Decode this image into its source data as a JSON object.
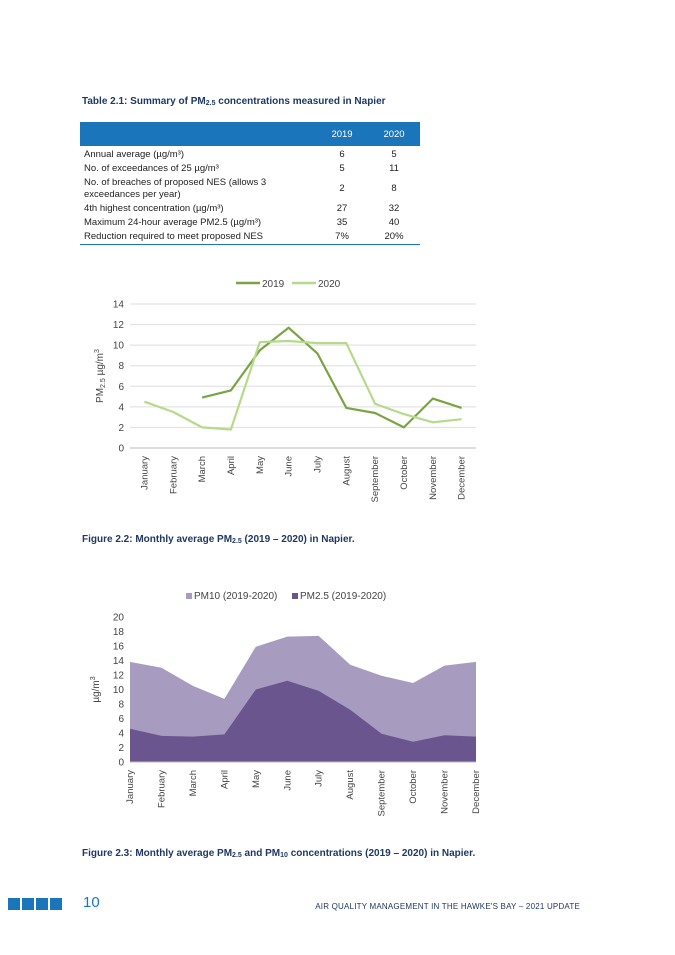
{
  "table": {
    "caption_pre": "Table 2.1: Summary of PM",
    "caption_sub": "2.5",
    "caption_post": " concentrations measured in Napier",
    "headers": [
      "",
      "2019",
      "2020"
    ],
    "rows": [
      {
        "label": "Annual average (µg/m³)",
        "v2019": "6",
        "v2020": "5"
      },
      {
        "label": "No. of exceedances of 25 µg/m³",
        "v2019": "5",
        "v2020": "11"
      },
      {
        "label": "No. of breaches of proposed NES (allows 3 exceedances per year)",
        "v2019": "2",
        "v2020": "8"
      },
      {
        "label": "4th highest concentration (µg/m³)",
        "v2019": "27",
        "v2020": "32"
      },
      {
        "label": "Maximum 24-hour average PM2.5 (µg/m³)",
        "v2019": "35",
        "v2020": "40"
      },
      {
        "label": "Reduction required to meet proposed NES",
        "v2019": "7%",
        "v2020": "20%"
      }
    ]
  },
  "figure1": {
    "caption_pre": "Figure 2.2: Monthly average PM",
    "caption_sub": "2.5",
    "caption_post": " (2019 – 2020) in Napier."
  },
  "figure2": {
    "caption_pre": "Figure 2.3: Monthly average PM",
    "caption_sub": "2.5",
    "caption_mid": " and PM",
    "caption_sub2": "10",
    "caption_post": " concentrations (2019 – 2020) in Napier."
  },
  "footer": {
    "page_number": "10",
    "title": "AIR QUALITY MANAGEMENT IN THE HAWKE'S BAY – 2021 UPDATE"
  },
  "chart_data": [
    {
      "type": "line",
      "title": "",
      "xlabel": "",
      "ylabel": "PM2.5 µg/m3",
      "ylim": [
        0,
        14
      ],
      "yticks": [
        "0",
        "2",
        "4",
        "6",
        "8",
        "10",
        "12",
        "14"
      ],
      "grid": true,
      "legend": "top",
      "categories": [
        "January",
        "February",
        "March",
        "April",
        "May",
        "June",
        "July",
        "August",
        "September",
        "October",
        "November",
        "December"
      ],
      "series": [
        {
          "name": "2019",
          "color": "#7aa343",
          "values": [
            null,
            null,
            4.9,
            5.6,
            9.5,
            11.7,
            9.2,
            3.9,
            3.4,
            2.0,
            4.8,
            3.9
          ]
        },
        {
          "name": "2020",
          "color": "#b7d98b",
          "values": [
            4.5,
            3.5,
            2.0,
            1.8,
            10.3,
            10.4,
            10.2,
            10.2,
            4.3,
            3.3,
            2.5,
            2.8
          ]
        }
      ]
    },
    {
      "type": "area",
      "title": "",
      "xlabel": "",
      "ylabel": "µg/m3",
      "ylim": [
        0,
        20
      ],
      "yticks": [
        "0",
        "2",
        "4",
        "6",
        "8",
        "10",
        "12",
        "14",
        "16",
        "18",
        "20"
      ],
      "grid": false,
      "legend": "top",
      "categories": [
        "January",
        "February",
        "March",
        "April",
        "May",
        "June",
        "July",
        "August",
        "September",
        "October",
        "November",
        "December"
      ],
      "series": [
        {
          "name": "PM10 (2019-2020)",
          "color": "#a89bc0",
          "values": [
            13.8,
            13.0,
            10.5,
            8.7,
            15.9,
            17.3,
            17.4,
            13.4,
            11.9,
            10.9,
            13.3,
            13.8
          ]
        },
        {
          "name": "PM2.5 (2019-2020)",
          "color": "#6b558f",
          "values": [
            4.6,
            3.6,
            3.5,
            3.8,
            10.0,
            11.2,
            9.8,
            7.2,
            3.9,
            2.8,
            3.7,
            3.5
          ]
        }
      ]
    }
  ]
}
